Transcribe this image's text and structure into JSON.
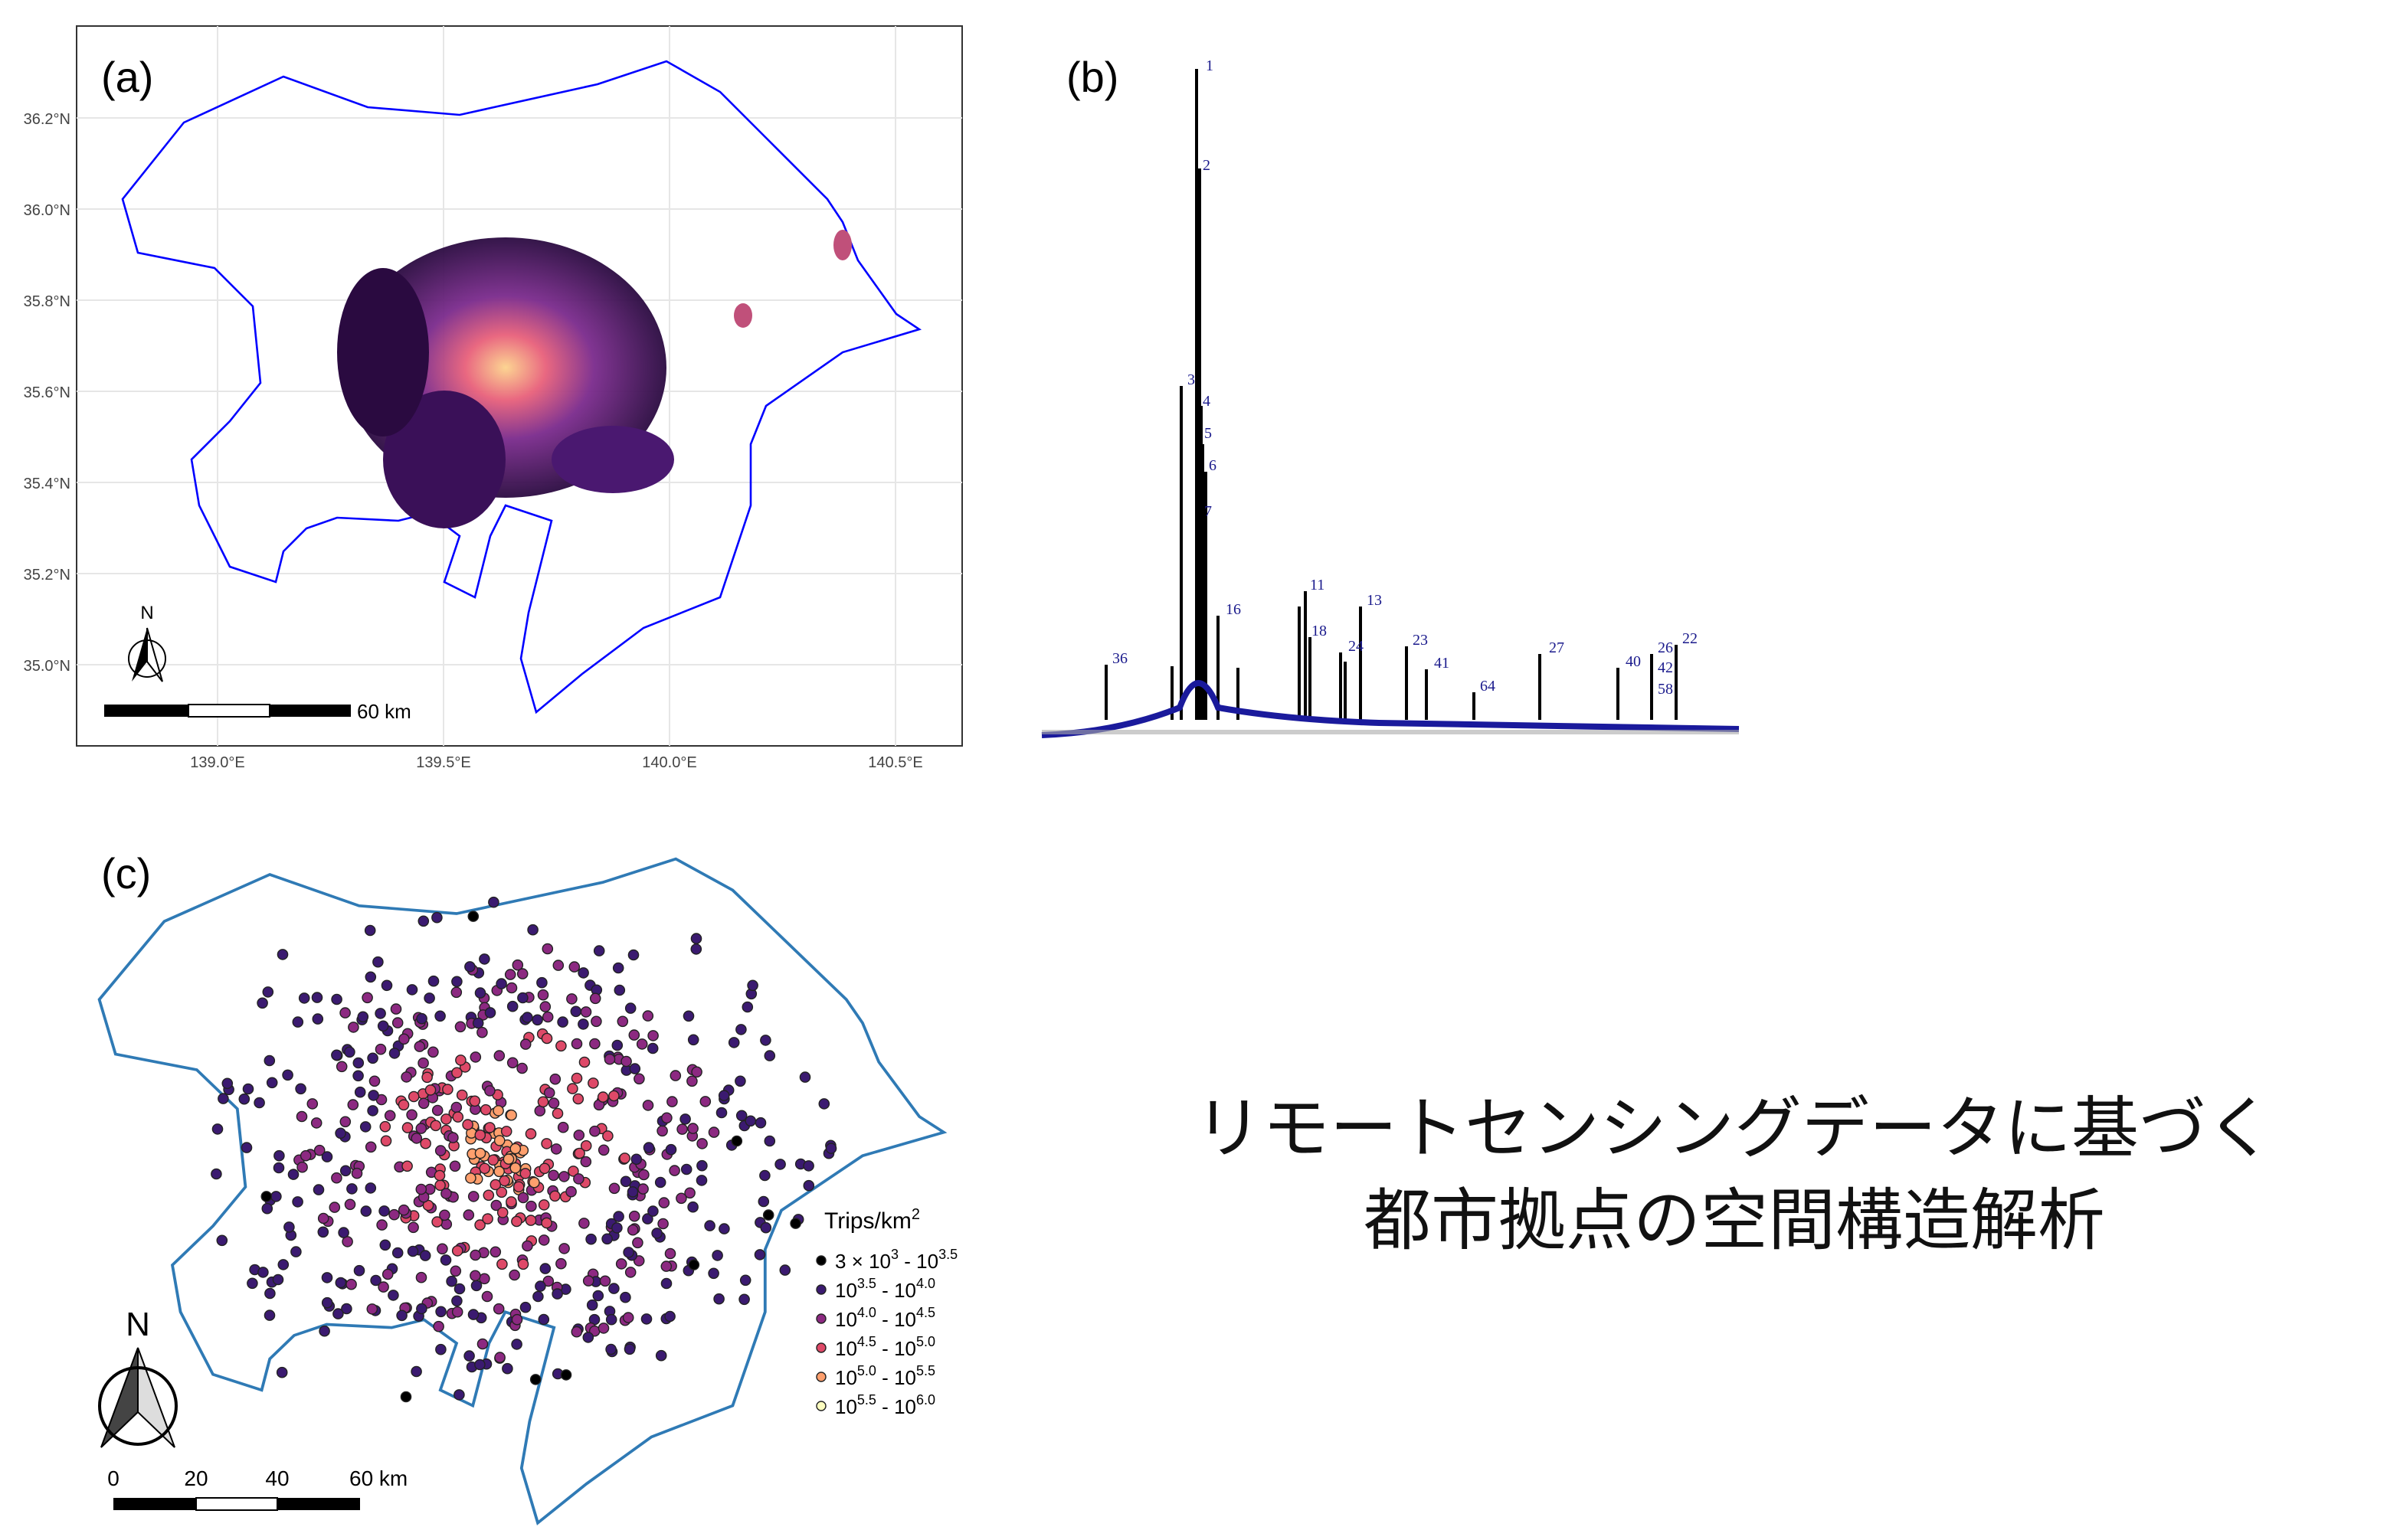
{
  "panel_a": {
    "label": "(a)",
    "yticks": [
      {
        "value": 35.0,
        "label": "35.0°N"
      },
      {
        "value": 35.2,
        "label": "35.2°N"
      },
      {
        "value": 35.4,
        "label": "35.4°N"
      },
      {
        "value": 35.6,
        "label": "35.6°N"
      },
      {
        "value": 35.8,
        "label": "35.8°N"
      },
      {
        "value": 36.0,
        "label": "36.0°N"
      },
      {
        "value": 36.2,
        "label": "36.2°N"
      }
    ],
    "xticks": [
      {
        "value": 139.0,
        "label": "139.0°E"
      },
      {
        "value": 139.5,
        "label": "139.5°E"
      },
      {
        "value": 140.0,
        "label": "140.0°E"
      },
      {
        "value": 140.5,
        "label": "140.5°E"
      }
    ],
    "north": "N",
    "scale_label": "60 km"
  },
  "panel_b": {
    "label": "(b)",
    "leaf_labels": [
      "1",
      "2",
      "3",
      "4",
      "5",
      "6",
      "7",
      "11",
      "13",
      "16",
      "18",
      "23",
      "24",
      "27",
      "22",
      "26",
      "36",
      "40",
      "41",
      "42",
      "58",
      "64"
    ]
  },
  "panel_c": {
    "label": "(c)",
    "north": "N",
    "scale_ticks": [
      "0",
      "20",
      "40",
      "60 km"
    ],
    "legend": {
      "title": "Trips/km",
      "title_sup": "2",
      "entries": [
        {
          "color": "#000000",
          "from": "3 × 10",
          "from_sup": "3",
          "to": "10",
          "to_sup": "3.5"
        },
        {
          "color": "#3b1a70",
          "from": "10",
          "from_sup": "3.5",
          "to": "10",
          "to_sup": "4.0"
        },
        {
          "color": "#8c2981",
          "from": "10",
          "from_sup": "4.0",
          "to": "10",
          "to_sup": "4.5"
        },
        {
          "color": "#de4968",
          "from": "10",
          "from_sup": "4.5",
          "to": "10",
          "to_sup": "5.0"
        },
        {
          "color": "#fe9f6d",
          "from": "10",
          "from_sup": "5.0",
          "to": "10",
          "to_sup": "5.5"
        },
        {
          "color": "#fcfdbf",
          "from": "10",
          "from_sup": "5.5",
          "to": "10",
          "to_sup": "6.0"
        }
      ]
    }
  },
  "title": {
    "lines": [
      "リモートセンシングデータに基づく",
      "都市拠点の空間構造解析"
    ]
  }
}
